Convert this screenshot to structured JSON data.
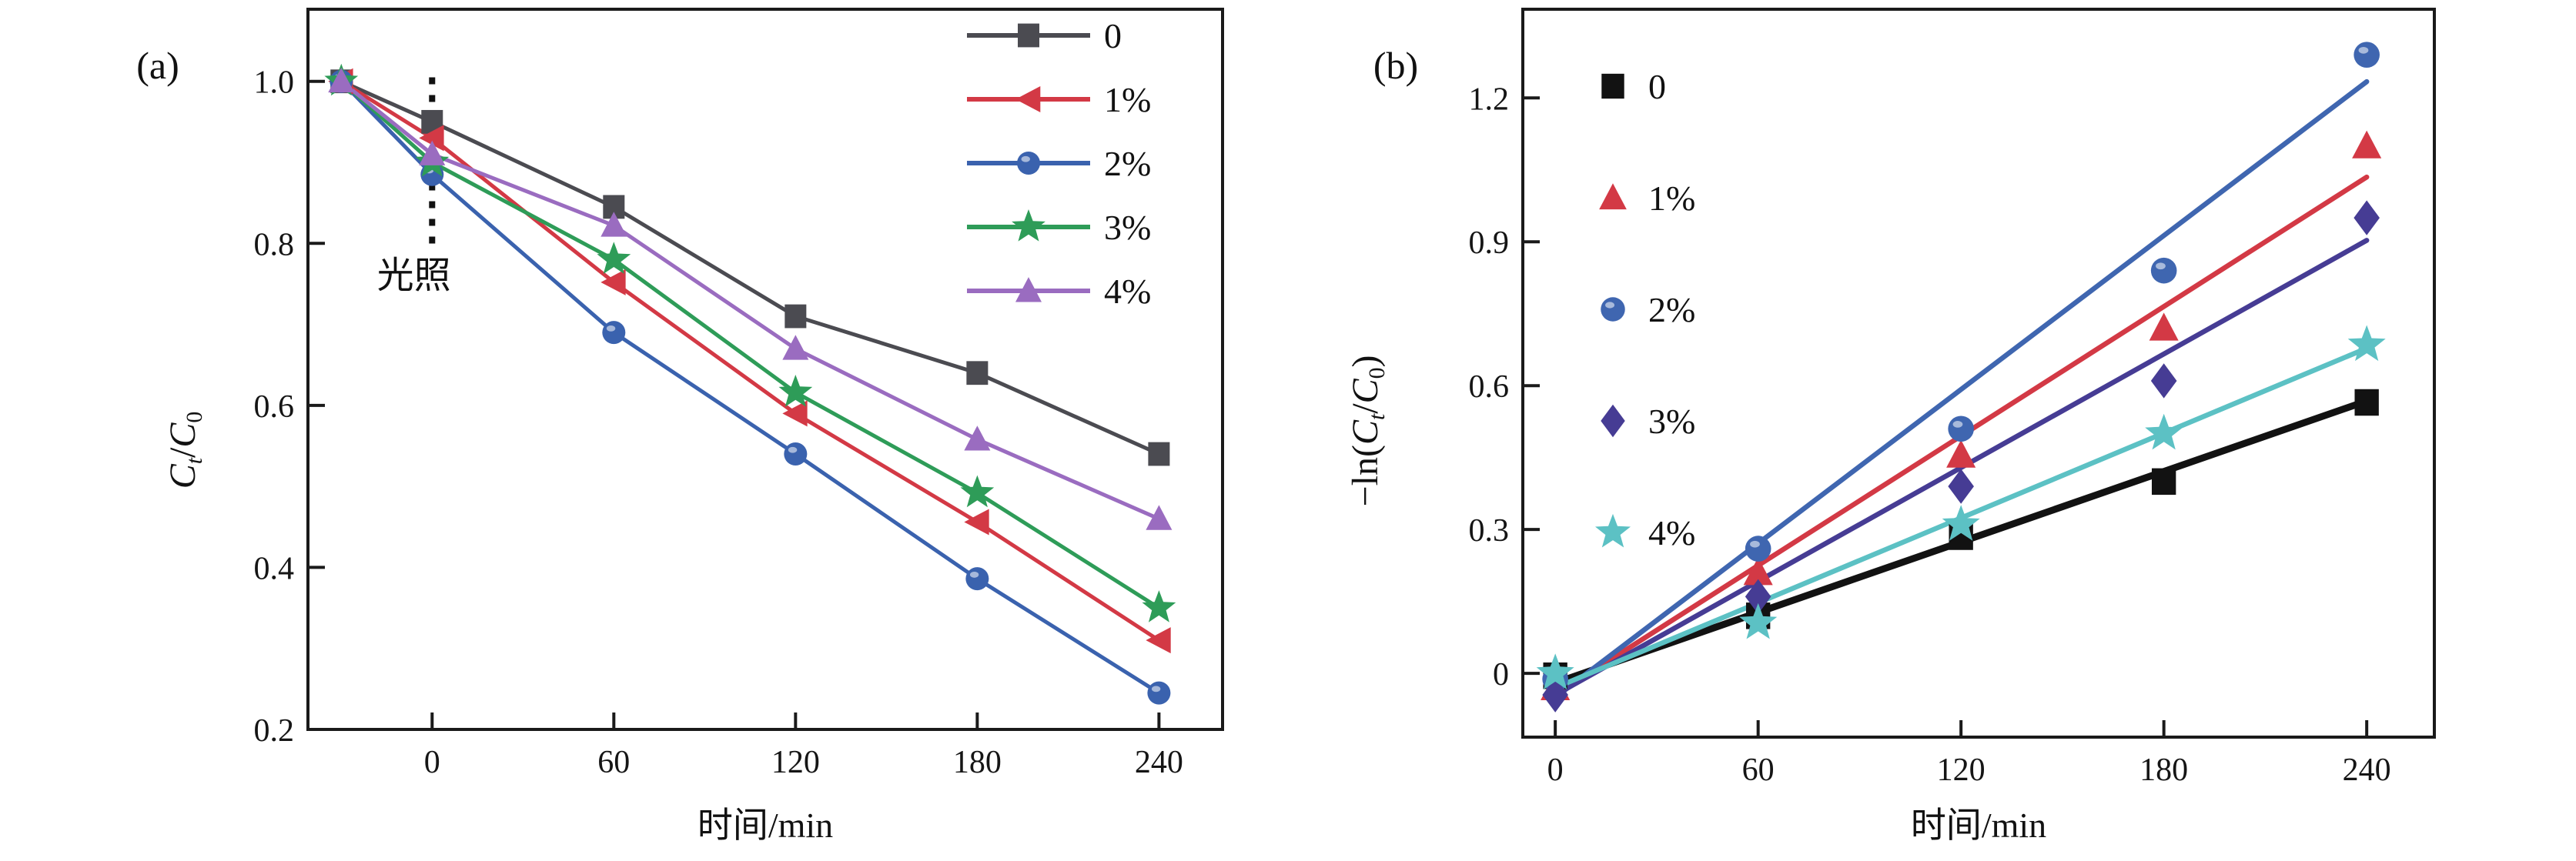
{
  "figure": {
    "background": "#ffffff"
  },
  "chart_data": [
    {
      "id": "a",
      "type": "line",
      "panel_label": "(a)",
      "xlabel": "时间/min",
      "ylabel": "Ct/C0",
      "ylabel_parts": [
        {
          "text": "C",
          "cls": "it"
        },
        {
          "text": "t",
          "cls": "it sub"
        },
        {
          "text": "/",
          "cls": ""
        },
        {
          "text": "C",
          "cls": "it"
        },
        {
          "text": "0",
          "cls": "sub"
        }
      ],
      "xlim": [
        -41,
        261
      ],
      "ylim": [
        0.2,
        1.089
      ],
      "x_ticks": {
        "values": [
          0,
          60,
          120,
          180,
          240
        ],
        "labels": [
          "0",
          "60",
          "120",
          "180",
          "240"
        ]
      },
      "y_ticks": {
        "values": [
          1.0,
          0.8,
          0.6,
          0.4,
          0.2
        ],
        "labels": [
          "1.0",
          "0.8",
          "0.6",
          "0.4",
          "0.2"
        ]
      },
      "x": [
        -30,
        0,
        60,
        120,
        180,
        240
      ],
      "series": [
        {
          "name": "0",
          "marker": "square",
          "color": "#4b4b51",
          "values": [
            1.0,
            0.95,
            0.845,
            0.71,
            0.64,
            0.54
          ]
        },
        {
          "name": "1%",
          "marker": "tri-left",
          "color": "#d33945",
          "values": [
            1.0,
            0.93,
            0.752,
            0.59,
            0.456,
            0.31
          ]
        },
        {
          "name": "2%",
          "marker": "circle",
          "color": "#3a62ae",
          "values": [
            1.0,
            0.885,
            0.69,
            0.54,
            0.386,
            0.245
          ]
        },
        {
          "name": "3%",
          "marker": "star",
          "color": "#2e9c58",
          "values": [
            1.0,
            0.9,
            0.78,
            0.616,
            0.492,
            0.35
          ]
        },
        {
          "name": "4%",
          "marker": "tri-up",
          "color": "#9a6cc0",
          "values": [
            1.0,
            0.91,
            0.822,
            0.67,
            0.558,
            0.46
          ]
        }
      ],
      "annotation": {
        "text": "光照",
        "line_x": 0,
        "line_y_from": 0.79,
        "line_y_to": 1.005,
        "label_x": -6,
        "label_y": 0.745
      },
      "legend": {
        "style": "line-marker",
        "position": "top-right",
        "items": [
          {
            "label": "0",
            "marker": "square",
            "color": "#4b4b51"
          },
          {
            "label": "1%",
            "marker": "tri-left",
            "color": "#d33945"
          },
          {
            "label": "2%",
            "marker": "circle",
            "color": "#3a62ae"
          },
          {
            "label": "3%",
            "marker": "star",
            "color": "#2e9c58"
          },
          {
            "label": "4%",
            "marker": "tri-up",
            "color": "#9a6cc0"
          }
        ]
      }
    },
    {
      "id": "b",
      "type": "scatter-fit",
      "panel_label": "(b)",
      "xlabel": "时间/min",
      "ylabel": "-ln(Ct/C0)",
      "ylabel_parts": [
        {
          "text": "−ln(",
          "cls": ""
        },
        {
          "text": "C",
          "cls": "it"
        },
        {
          "text": "t",
          "cls": "it sub"
        },
        {
          "text": "/",
          "cls": ""
        },
        {
          "text": "C",
          "cls": "it"
        },
        {
          "text": "0",
          "cls": "sub"
        },
        {
          "text": ")",
          "cls": ""
        }
      ],
      "xlim": [
        -9.6,
        260
      ],
      "ylim": [
        -0.133,
        1.385
      ],
      "x_ticks": {
        "values": [
          0,
          60,
          120,
          180,
          240
        ],
        "labels": [
          "0",
          "60",
          "120",
          "180",
          "240"
        ]
      },
      "y_ticks": {
        "values": [
          1.2,
          0.9,
          0.6,
          0.3,
          0
        ],
        "labels": [
          "1.2",
          "0.9",
          "0.6",
          "0.3",
          "0"
        ]
      },
      "x": [
        0,
        60,
        120,
        180,
        240
      ],
      "series": [
        {
          "name": "0",
          "marker": "square",
          "color": "#121212",
          "values": [
            -0.005,
            0.12,
            0.285,
            0.4,
            0.565
          ],
          "fit": {
            "x": [
              0,
              240
            ],
            "y": [
              -0.02,
              0.568
            ]
          }
        },
        {
          "name": "1%",
          "marker": "tri-up",
          "color": "#d33945",
          "values": [
            -0.03,
            0.21,
            0.455,
            0.72,
            1.1
          ],
          "fit": {
            "x": [
              0,
              240
            ],
            "y": [
              -0.045,
              1.035
            ]
          }
        },
        {
          "name": "2%",
          "marker": "circle",
          "color": "#3f66b0",
          "values": [
            -0.012,
            0.26,
            0.51,
            0.84,
            1.29
          ],
          "fit": {
            "x": [
              0,
              240
            ],
            "y": [
              -0.05,
              1.234
            ]
          }
        },
        {
          "name": "3%",
          "marker": "diamond",
          "color": "#463c94",
          "values": [
            -0.045,
            0.16,
            0.39,
            0.61,
            0.95
          ],
          "fit": {
            "x": [
              0,
              240
            ],
            "y": [
              -0.045,
              0.903
            ]
          }
        },
        {
          "name": "4%",
          "marker": "star",
          "color": "#5cc1c4",
          "values": [
            0.0,
            0.105,
            0.31,
            0.5,
            0.685
          ],
          "fit": {
            "x": [
              0,
              240
            ],
            "y": [
              -0.03,
              0.678
            ]
          }
        }
      ],
      "legend": {
        "style": "marker",
        "position": "top-left",
        "items": [
          {
            "label": "0",
            "marker": "square",
            "color": "#121212"
          },
          {
            "label": "1%",
            "marker": "tri-up",
            "color": "#d33945"
          },
          {
            "label": "2%",
            "marker": "circle",
            "color": "#3f66b0"
          },
          {
            "label": "3%",
            "marker": "diamond",
            "color": "#463c94"
          },
          {
            "label": "4%",
            "marker": "star",
            "color": "#5cc1c4"
          }
        ]
      }
    }
  ]
}
